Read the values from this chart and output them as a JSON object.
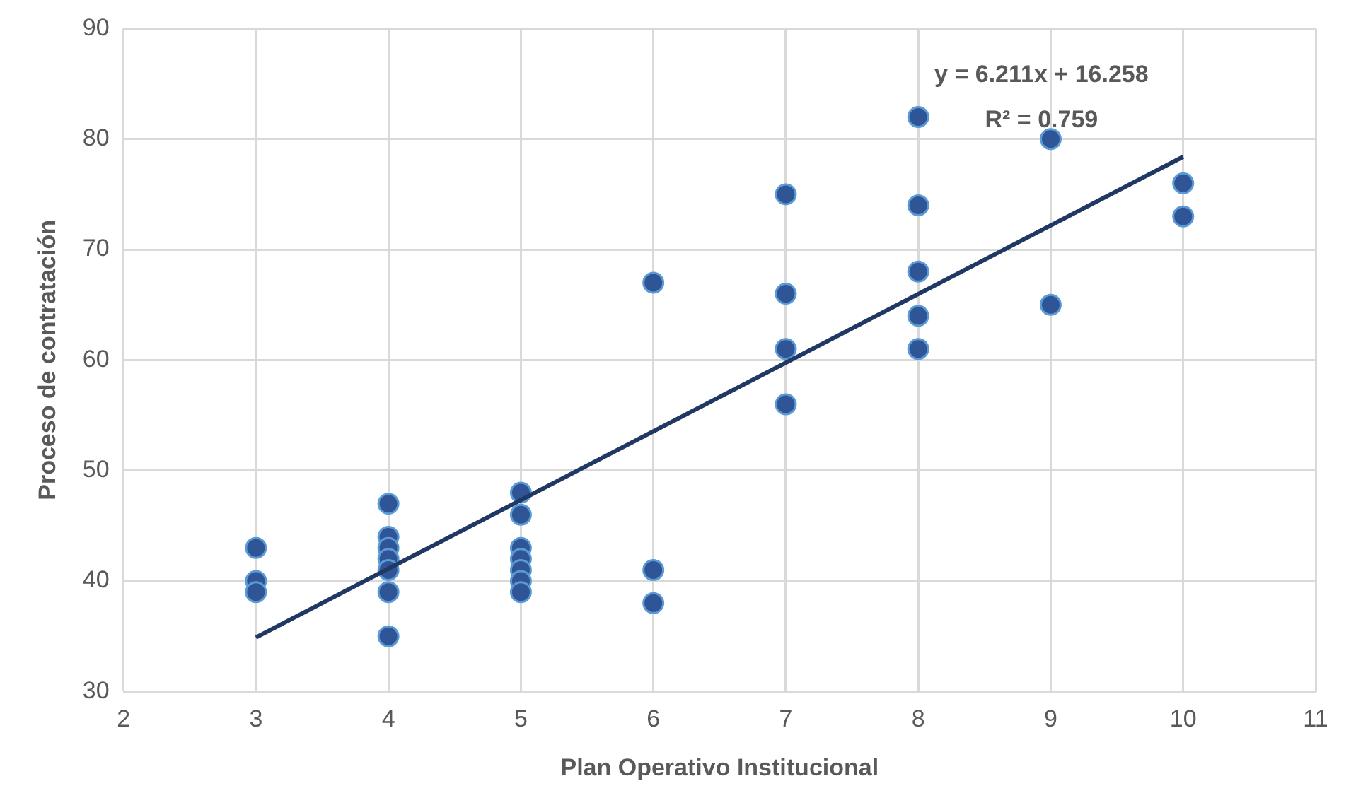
{
  "chart_data": {
    "type": "scatter",
    "xlabel": "Plan Operativo Institucional",
    "ylabel": "Proceso de contratación",
    "xlim": [
      2,
      11
    ],
    "xticks": [
      2,
      3,
      4,
      5,
      6,
      7,
      8,
      9,
      10,
      11
    ],
    "ylim": [
      30,
      90
    ],
    "yticks": [
      30,
      40,
      50,
      60,
      70,
      80,
      90
    ],
    "grid": true,
    "legend": false,
    "marker": "circle",
    "series": [
      {
        "color": "#2f5597",
        "x": [
          3,
          3,
          3,
          4,
          4,
          4,
          4,
          4,
          4,
          4,
          5,
          5,
          5,
          5,
          5,
          5,
          5,
          6,
          6,
          6,
          7,
          7,
          7,
          7,
          8,
          8,
          8,
          8,
          8,
          9,
          9,
          10,
          10
        ],
        "values": [
          43,
          40,
          39,
          47,
          44,
          43,
          42,
          41,
          39,
          35,
          48,
          46,
          43,
          42,
          41,
          40,
          39,
          67,
          41,
          38,
          75,
          66,
          61,
          56,
          82,
          74,
          68,
          64,
          61,
          80,
          65,
          76,
          73
        ]
      },
      {
        "type": "line",
        "color": "#203864",
        "x": [
          3,
          10
        ],
        "values": [
          34.9,
          78.4
        ],
        "marker": "none"
      }
    ],
    "annotations": [
      "y = 6.211x + 16.258",
      "R² = 0.759"
    ]
  }
}
